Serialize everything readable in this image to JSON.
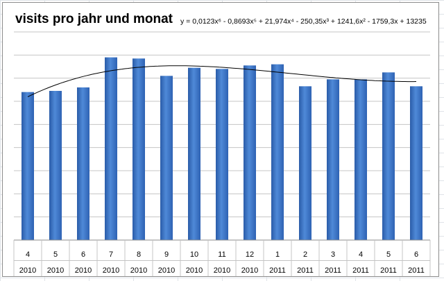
{
  "chart_data": {
    "type": "bar",
    "title": "visits pro jahr und monat",
    "trendline_label": "y = 0,0123x⁶ - 0,8693x⁵ + 21,974x⁴ - 250,35x³ + 1241,6x² - 1759,3x + 13235",
    "categories": [
      [
        "4",
        "2010"
      ],
      [
        "5",
        "2010"
      ],
      [
        "6",
        "2010"
      ],
      [
        "7",
        "2010"
      ],
      [
        "8",
        "2010"
      ],
      [
        "9",
        "2010"
      ],
      [
        "10",
        "2010"
      ],
      [
        "11",
        "2010"
      ],
      [
        "12",
        "2010"
      ],
      [
        "1",
        "2011"
      ],
      [
        "2",
        "2011"
      ],
      [
        "3",
        "2011"
      ],
      [
        "4",
        "2011"
      ],
      [
        "5",
        "2011"
      ],
      [
        "6",
        "2011"
      ]
    ],
    "values": [
      12800,
      12900,
      13200,
      15800,
      15700,
      14200,
      14900,
      14800,
      15100,
      15200,
      13300,
      13900,
      13900,
      14500,
      13300
    ],
    "ylim": [
      0,
      18000
    ],
    "grid": true,
    "bar_color": "#3e77c7",
    "trendline": true
  }
}
